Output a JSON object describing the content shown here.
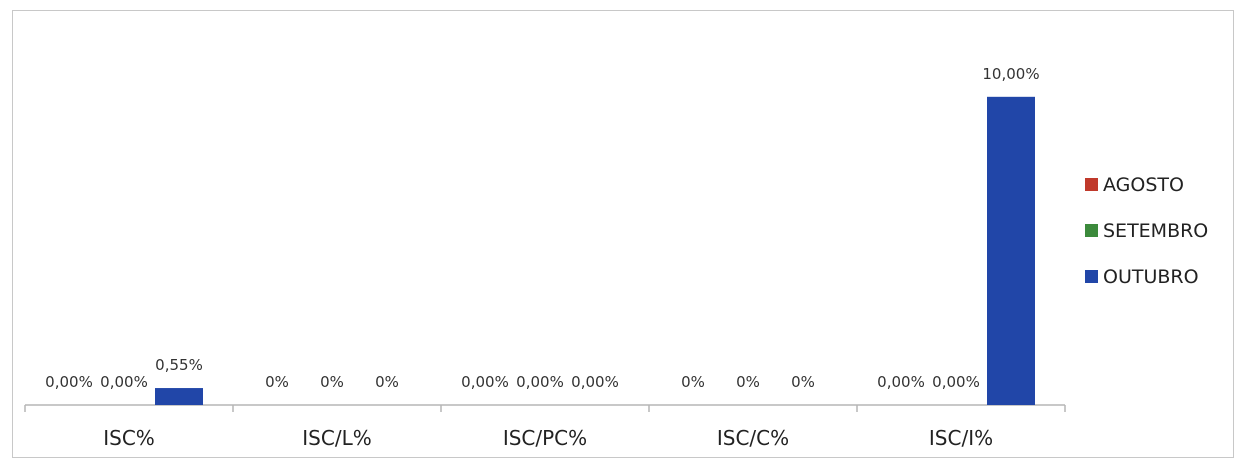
{
  "chart_data": {
    "type": "bar",
    "categories": [
      "ISC%",
      "ISC/L%",
      "ISC/PC%",
      "ISC/C%",
      "ISC/I%"
    ],
    "series": [
      {
        "name": "AGOSTO",
        "color": "#c0392b",
        "values": [
          0,
          0,
          0,
          0,
          0
        ],
        "labels": [
          "0,00%",
          "0%",
          "0,00%",
          "0%",
          "0,00%"
        ]
      },
      {
        "name": "SETEMBRO",
        "color": "#3c8a3c",
        "values": [
          0,
          0,
          0,
          0,
          0
        ],
        "labels": [
          "0,00%",
          "0%",
          "0,00%",
          "0%",
          "0,00%"
        ]
      },
      {
        "name": "OUTUBRO",
        "color": "#2146a8",
        "values": [
          0.55,
          0,
          0,
          0,
          10.0
        ],
        "labels": [
          "0,55%",
          "0%",
          "0,00%",
          "0%",
          "10,00%"
        ]
      }
    ],
    "ylim": [
      0,
      11
    ],
    "unit": "%",
    "grid": false,
    "legend_position": "right"
  }
}
